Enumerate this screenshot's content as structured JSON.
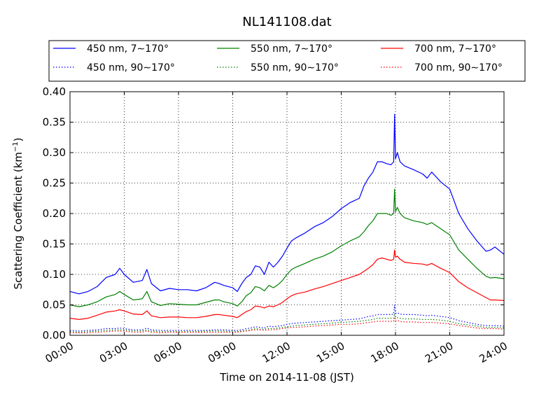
{
  "chart_data": {
    "type": "line",
    "title": "NL141108.dat",
    "xlabel": "Time on 2014-11-08 (JST)",
    "ylabel": "Scattering Coefficient (km",
    "ylabel_sup": "−1",
    "ylabel_close": ")",
    "xlim": [
      "00:00",
      "24:00"
    ],
    "ylim": [
      0,
      0.4
    ],
    "grid": true,
    "legend_position": "top",
    "x_ticks": [
      "00:00",
      "03:00",
      "06:00",
      "09:00",
      "12:00",
      "15:00",
      "18:00",
      "21:00",
      "24:00"
    ],
    "y_ticks": [
      "0.00",
      "0.05",
      "0.10",
      "0.15",
      "0.20",
      "0.25",
      "0.30",
      "0.35",
      "0.40"
    ],
    "x_hours": [
      0,
      0.5,
      1,
      1.5,
      2,
      2.5,
      2.75,
      3,
      3.5,
      4,
      4.25,
      4.5,
      5,
      5.5,
      6,
      6.5,
      7,
      7.5,
      8,
      8.25,
      8.5,
      9,
      9.25,
      9.5,
      9.75,
      10,
      10.25,
      10.5,
      10.75,
      11,
      11.25,
      11.5,
      11.75,
      12,
      12.25,
      12.5,
      13,
      13.5,
      14,
      14.5,
      15,
      15.5,
      16,
      16.25,
      16.5,
      16.75,
      17,
      17.25,
      17.5,
      17.75,
      17.9,
      17.95,
      18,
      18.1,
      18.25,
      18.5,
      19,
      19.5,
      19.75,
      20,
      20.5,
      21,
      21.5,
      22,
      22.5,
      23,
      23.25,
      23.5,
      24
    ],
    "series": [
      {
        "name": "450 nm, 7∼170°",
        "color": "#0000ff",
        "dash": false,
        "values": [
          0.072,
          0.068,
          0.072,
          0.08,
          0.095,
          0.1,
          0.11,
          0.1,
          0.087,
          0.09,
          0.108,
          0.085,
          0.073,
          0.077,
          0.075,
          0.075,
          0.073,
          0.078,
          0.087,
          0.085,
          0.082,
          0.078,
          0.072,
          0.085,
          0.095,
          0.1,
          0.114,
          0.112,
          0.1,
          0.12,
          0.112,
          0.12,
          0.13,
          0.143,
          0.155,
          0.16,
          0.168,
          0.178,
          0.185,
          0.195,
          0.208,
          0.218,
          0.225,
          0.245,
          0.258,
          0.268,
          0.285,
          0.285,
          0.282,
          0.28,
          0.285,
          0.363,
          0.29,
          0.3,
          0.285,
          0.278,
          0.272,
          0.265,
          0.258,
          0.268,
          0.252,
          0.24,
          0.2,
          0.175,
          0.155,
          0.138,
          0.14,
          0.145,
          0.133
        ]
      },
      {
        "name": "550 nm, 7∼170°",
        "color": "#008000",
        "dash": false,
        "values": [
          0.05,
          0.047,
          0.05,
          0.055,
          0.063,
          0.067,
          0.072,
          0.067,
          0.058,
          0.06,
          0.072,
          0.055,
          0.049,
          0.052,
          0.051,
          0.05,
          0.05,
          0.054,
          0.058,
          0.058,
          0.055,
          0.052,
          0.048,
          0.055,
          0.065,
          0.07,
          0.08,
          0.078,
          0.073,
          0.082,
          0.078,
          0.083,
          0.09,
          0.1,
          0.108,
          0.112,
          0.118,
          0.125,
          0.13,
          0.137,
          0.147,
          0.155,
          0.162,
          0.17,
          0.18,
          0.188,
          0.2,
          0.2,
          0.2,
          0.197,
          0.2,
          0.24,
          0.203,
          0.21,
          0.2,
          0.193,
          0.188,
          0.185,
          0.182,
          0.185,
          0.175,
          0.165,
          0.14,
          0.125,
          0.11,
          0.097,
          0.094,
          0.095,
          0.093
        ]
      },
      {
        "name": "700 nm, 7∼170°",
        "color": "#ff0000",
        "dash": false,
        "values": [
          0.028,
          0.026,
          0.028,
          0.033,
          0.038,
          0.04,
          0.042,
          0.04,
          0.035,
          0.034,
          0.04,
          0.032,
          0.029,
          0.03,
          0.03,
          0.029,
          0.029,
          0.031,
          0.034,
          0.034,
          0.033,
          0.031,
          0.029,
          0.034,
          0.039,
          0.042,
          0.048,
          0.047,
          0.045,
          0.048,
          0.047,
          0.05,
          0.054,
          0.06,
          0.065,
          0.068,
          0.071,
          0.076,
          0.08,
          0.085,
          0.09,
          0.095,
          0.1,
          0.105,
          0.11,
          0.116,
          0.125,
          0.127,
          0.125,
          0.123,
          0.125,
          0.14,
          0.128,
          0.13,
          0.125,
          0.12,
          0.118,
          0.117,
          0.115,
          0.118,
          0.11,
          0.103,
          0.088,
          0.078,
          0.07,
          0.062,
          0.058,
          0.058,
          0.057
        ]
      },
      {
        "name": "450 nm, 90∼170°",
        "color": "#0000ff",
        "dash": true,
        "values": [
          0.008,
          0.007,
          0.008,
          0.009,
          0.011,
          0.011,
          0.012,
          0.011,
          0.009,
          0.009,
          0.012,
          0.009,
          0.008,
          0.008,
          0.008,
          0.008,
          0.008,
          0.008,
          0.009,
          0.009,
          0.009,
          0.008,
          0.008,
          0.009,
          0.011,
          0.012,
          0.014,
          0.013,
          0.012,
          0.015,
          0.014,
          0.015,
          0.016,
          0.018,
          0.019,
          0.02,
          0.021,
          0.022,
          0.023,
          0.024,
          0.025,
          0.026,
          0.027,
          0.029,
          0.031,
          0.032,
          0.034,
          0.034,
          0.034,
          0.034,
          0.035,
          0.05,
          0.036,
          0.037,
          0.035,
          0.034,
          0.034,
          0.033,
          0.032,
          0.033,
          0.031,
          0.029,
          0.024,
          0.021,
          0.018,
          0.016,
          0.016,
          0.016,
          0.015
        ]
      },
      {
        "name": "550 nm, 90∼170°",
        "color": "#008000",
        "dash": true,
        "values": [
          0.006,
          0.005,
          0.006,
          0.007,
          0.008,
          0.009,
          0.009,
          0.009,
          0.007,
          0.007,
          0.009,
          0.007,
          0.006,
          0.006,
          0.006,
          0.006,
          0.006,
          0.007,
          0.007,
          0.007,
          0.007,
          0.006,
          0.006,
          0.007,
          0.008,
          0.009,
          0.011,
          0.01,
          0.01,
          0.011,
          0.011,
          0.012,
          0.013,
          0.014,
          0.015,
          0.016,
          0.017,
          0.018,
          0.019,
          0.02,
          0.021,
          0.022,
          0.023,
          0.024,
          0.025,
          0.026,
          0.028,
          0.028,
          0.028,
          0.028,
          0.028,
          0.036,
          0.029,
          0.029,
          0.028,
          0.027,
          0.027,
          0.026,
          0.026,
          0.026,
          0.025,
          0.023,
          0.019,
          0.017,
          0.015,
          0.013,
          0.013,
          0.013,
          0.012
        ]
      },
      {
        "name": "700 nm, 90∼170°",
        "color": "#ff0000",
        "dash": true,
        "values": [
          0.004,
          0.004,
          0.004,
          0.005,
          0.006,
          0.007,
          0.007,
          0.007,
          0.005,
          0.005,
          0.007,
          0.005,
          0.004,
          0.005,
          0.005,
          0.005,
          0.005,
          0.005,
          0.005,
          0.005,
          0.005,
          0.005,
          0.005,
          0.006,
          0.007,
          0.008,
          0.009,
          0.009,
          0.008,
          0.009,
          0.009,
          0.01,
          0.011,
          0.012,
          0.013,
          0.013,
          0.014,
          0.015,
          0.016,
          0.017,
          0.018,
          0.018,
          0.019,
          0.02,
          0.021,
          0.022,
          0.023,
          0.023,
          0.023,
          0.023,
          0.023,
          0.028,
          0.024,
          0.024,
          0.023,
          0.022,
          0.022,
          0.021,
          0.021,
          0.021,
          0.02,
          0.019,
          0.016,
          0.014,
          0.012,
          0.011,
          0.011,
          0.011,
          0.01
        ]
      }
    ]
  }
}
